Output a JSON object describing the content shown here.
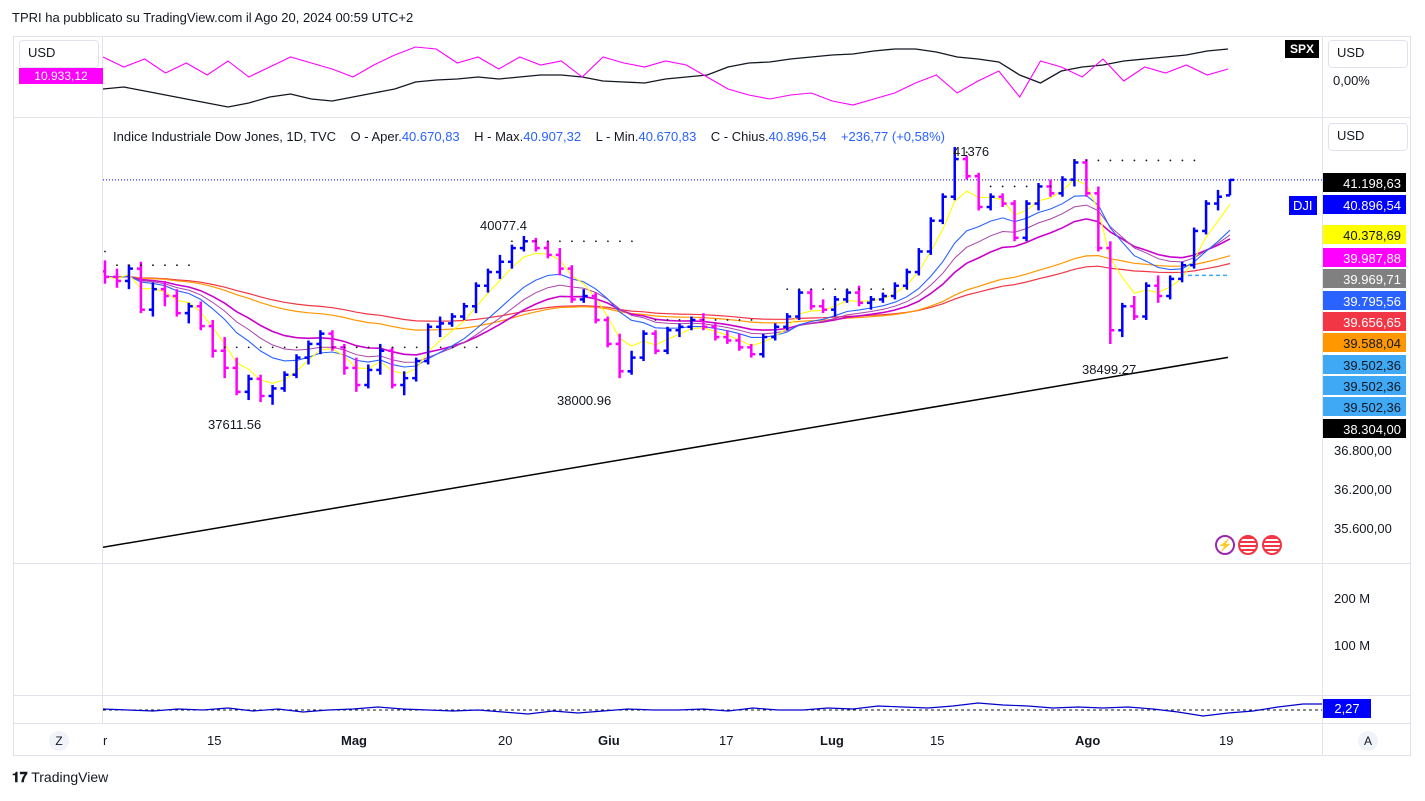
{
  "header": {
    "publisher": "TPRI ha pubblicato su TradingView.com il Ago 20, 2024 00:59 UTC+2"
  },
  "top_pane": {
    "currency_left": "USD",
    "currency_right": "USD",
    "symbol_badge": "SPX",
    "right_value": "0,00%",
    "left_value": "10.933,12"
  },
  "main_pane": {
    "currency": "USD",
    "legend": {
      "name": "Indice Industriale Dow Jones, 1D, TVC",
      "o_label": "O - Aper.",
      "o_value": "40.670,83",
      "h_label": "H - Max.",
      "h_value": "40.907,32",
      "l_label": "L - Min.",
      "l_value": "40.670,83",
      "c_label": "C - Chius.",
      "c_value": "40.896,54",
      "change": "+236,77 (+0,58%)"
    },
    "symbol_tag": "DJI",
    "price_labels": [
      {
        "text": "41.198,63",
        "bg": "#000000",
        "fg": "#ffffff"
      },
      {
        "text": "40.896,54",
        "bg": "#0000ff",
        "fg": "#ffffff"
      },
      {
        "text": "40.378,69",
        "bg": "#ffff00",
        "fg": "#131722"
      },
      {
        "text": "39.987,88",
        "bg": "#ff00ff",
        "fg": "#ffffff"
      },
      {
        "text": "39.969,71",
        "bg": "#808080",
        "fg": "#ffffff"
      },
      {
        "text": "39.795,56",
        "bg": "#2962ff",
        "fg": "#ffffff"
      },
      {
        "text": "39.656,65",
        "bg": "#f23645",
        "fg": "#ffffff"
      },
      {
        "text": "39.588,04",
        "bg": "#ff9800",
        "fg": "#131722"
      },
      {
        "text": "39.502,36",
        "bg": "#3fa9f5",
        "fg": "#131722"
      },
      {
        "text": "39.502,36",
        "bg": "#3fa9f5",
        "fg": "#131722"
      },
      {
        "text": "39.502,36",
        "bg": "#3fa9f5",
        "fg": "#131722"
      },
      {
        "text": "38.304,00",
        "bg": "#000000",
        "fg": "#ffffff"
      }
    ],
    "y_ticks": [
      "36.800,00",
      "36.200,00",
      "35.600,00"
    ],
    "annotations": [
      "41376",
      "40077.4",
      "38000.96",
      "37611.56",
      "38499.27"
    ]
  },
  "volume_pane": {
    "y_ticks": [
      "200 M",
      "100 M"
    ]
  },
  "indicator_pane": {
    "value": "2,27"
  },
  "x_axis": [
    {
      "text": "r",
      "bold": false
    },
    {
      "text": "15",
      "bold": false
    },
    {
      "text": "Mag",
      "bold": true
    },
    {
      "text": "20",
      "bold": false
    },
    {
      "text": "Giu",
      "bold": true
    },
    {
      "text": "17",
      "bold": false
    },
    {
      "text": "Lug",
      "bold": true
    },
    {
      "text": "15",
      "bold": false
    },
    {
      "text": "Ago",
      "bold": true
    },
    {
      "text": "19",
      "bold": false
    }
  ],
  "axis_buttons": {
    "left": "Z",
    "right": "A"
  },
  "footer": {
    "brand": "TradingView"
  },
  "colors": {
    "up": "#0000ff",
    "down": "#ff00ff",
    "ema_yellow": "#ffff00",
    "ema_blue": "#2962ff",
    "ema_magenta": "#cc00cc",
    "ma_red": "#f23645",
    "ma_orange": "#ff9800",
    "ma200_black": "#000000"
  },
  "chart_data": {
    "type": "ohlc",
    "ylim": [
      35300,
      41800
    ],
    "candles": [
      [
        39560,
        39720,
        39380,
        39480
      ],
      [
        39480,
        39600,
        39320,
        39420
      ],
      [
        39420,
        39660,
        39300,
        39600
      ],
      [
        39600,
        39700,
        38950,
        39000
      ],
      [
        39000,
        39400,
        38900,
        39300
      ],
      [
        39300,
        39420,
        39050,
        39200
      ],
      [
        39200,
        39300,
        38900,
        38950
      ],
      [
        38950,
        39100,
        38800,
        39050
      ],
      [
        39050,
        39120,
        38700,
        38760
      ],
      [
        38760,
        38850,
        38300,
        38400
      ],
      [
        38400,
        38600,
        38000,
        38150
      ],
      [
        38150,
        38300,
        37750,
        37800
      ],
      [
        37800,
        38050,
        37680,
        37990
      ],
      [
        37990,
        38050,
        37650,
        37740
      ],
      [
        37740,
        37900,
        37611,
        37850
      ],
      [
        37850,
        38100,
        37800,
        38050
      ],
      [
        38050,
        38350,
        38000,
        38300
      ],
      [
        38300,
        38550,
        38200,
        38500
      ],
      [
        38500,
        38700,
        38350,
        38650
      ],
      [
        38650,
        38700,
        38400,
        38450
      ],
      [
        38450,
        38500,
        38050,
        38150
      ],
      [
        38150,
        38300,
        37800,
        37900
      ],
      [
        37900,
        38200,
        37850,
        38120
      ],
      [
        38120,
        38500,
        38050,
        38400
      ],
      [
        38400,
        38450,
        37850,
        37900
      ],
      [
        37900,
        38100,
        37750,
        38000
      ],
      [
        38000,
        38300,
        37950,
        38250
      ],
      [
        38250,
        38800,
        38200,
        38750
      ],
      [
        38750,
        38900,
        38600,
        38800
      ],
      [
        38800,
        38950,
        38750,
        38900
      ],
      [
        38900,
        39100,
        38850,
        39050
      ],
      [
        39050,
        39400,
        38950,
        39350
      ],
      [
        39350,
        39600,
        39250,
        39550
      ],
      [
        39550,
        39800,
        39450,
        39700
      ],
      [
        39700,
        39950,
        39600,
        39900
      ],
      [
        39900,
        40077,
        39850,
        40000
      ],
      [
        40000,
        40050,
        39850,
        39900
      ],
      [
        39900,
        40000,
        39750,
        39800
      ],
      [
        39800,
        39900,
        39500,
        39600
      ],
      [
        39600,
        39650,
        39100,
        39150
      ],
      [
        39150,
        39300,
        39100,
        39200
      ],
      [
        39200,
        39250,
        38800,
        38850
      ],
      [
        38850,
        38900,
        38450,
        38500
      ],
      [
        38500,
        38650,
        38000,
        38100
      ],
      [
        38100,
        38400,
        38050,
        38300
      ],
      [
        38300,
        38700,
        38250,
        38650
      ],
      [
        38650,
        38700,
        38350,
        38400
      ],
      [
        38400,
        38750,
        38350,
        38700
      ],
      [
        38700,
        38800,
        38600,
        38750
      ],
      [
        38750,
        38900,
        38700,
        38850
      ],
      [
        38850,
        38950,
        38700,
        38750
      ],
      [
        38750,
        38800,
        38550,
        38600
      ],
      [
        38600,
        38700,
        38500,
        38550
      ],
      [
        38550,
        38650,
        38400,
        38450
      ],
      [
        38450,
        38500,
        38300,
        38350
      ],
      [
        38350,
        38650,
        38300,
        38600
      ],
      [
        38600,
        38800,
        38550,
        38750
      ],
      [
        38750,
        38950,
        38700,
        38900
      ],
      [
        38900,
        39300,
        38850,
        39250
      ],
      [
        39250,
        39300,
        39000,
        39050
      ],
      [
        39050,
        39150,
        38950,
        39000
      ],
      [
        39000,
        39200,
        38900,
        39150
      ],
      [
        39150,
        39300,
        39100,
        39250
      ],
      [
        39250,
        39350,
        39050,
        39100
      ],
      [
        39100,
        39200,
        39000,
        39150
      ],
      [
        39150,
        39250,
        39100,
        39200
      ],
      [
        39200,
        39400,
        39150,
        39350
      ],
      [
        39350,
        39600,
        39300,
        39550
      ],
      [
        39550,
        39900,
        39500,
        39850
      ],
      [
        39850,
        40350,
        39800,
        40300
      ],
      [
        40300,
        40700,
        40250,
        40650
      ],
      [
        40650,
        41376,
        40600,
        41200
      ],
      [
        41200,
        41250,
        40900,
        40950
      ],
      [
        40950,
        41000,
        40450,
        40500
      ],
      [
        40500,
        40700,
        40450,
        40650
      ],
      [
        40650,
        40700,
        40500,
        40550
      ],
      [
        40550,
        40600,
        40000,
        40050
      ],
      [
        40050,
        40600,
        40000,
        40550
      ],
      [
        40550,
        40850,
        40450,
        40800
      ],
      [
        40800,
        40900,
        40650,
        40700
      ],
      [
        40700,
        40950,
        40650,
        40900
      ],
      [
        40900,
        41200,
        40800,
        41150
      ],
      [
        41150,
        41200,
        40650,
        40700
      ],
      [
        40700,
        40800,
        39850,
        39900
      ],
      [
        39900,
        40000,
        38499,
        38700
      ],
      [
        38700,
        39100,
        38600,
        39050
      ],
      [
        39050,
        39200,
        38850,
        38900
      ],
      [
        38900,
        39400,
        38850,
        39350
      ],
      [
        39350,
        39500,
        39100,
        39200
      ],
      [
        39200,
        39500,
        39150,
        39450
      ],
      [
        39450,
        39700,
        39400,
        39650
      ],
      [
        39650,
        40200,
        39600,
        40150
      ],
      [
        40150,
        40600,
        40100,
        40550
      ],
      [
        40550,
        40750,
        40450,
        40650
      ],
      [
        40670,
        40907,
        40670,
        40896
      ]
    ]
  }
}
